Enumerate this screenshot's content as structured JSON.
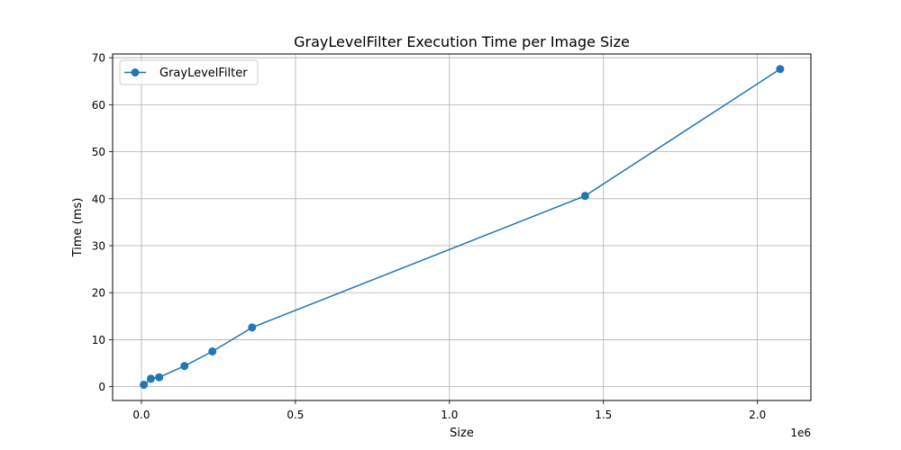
{
  "chart_data": {
    "type": "line",
    "title": "GrayLevelFilter Execution Time per Image Size",
    "xlabel": "Size",
    "ylabel": "Time (ms)",
    "x_offset_label": "1e6",
    "xlim": [
      -0.0935,
      2.1735
    ],
    "ylim": [
      -2.94,
      70.8
    ],
    "xticks": [
      0.0,
      0.5,
      1.0,
      1.5,
      2.0
    ],
    "xtick_labels": [
      "0.0",
      "0.5",
      "1.0",
      "1.5",
      "2.0"
    ],
    "yticks": [
      0,
      10,
      20,
      30,
      40,
      50,
      60,
      70
    ],
    "ytick_labels": [
      "0",
      "10",
      "20",
      "30",
      "40",
      "50",
      "60",
      "70"
    ],
    "grid": true,
    "legend_position": "top-left",
    "series": [
      {
        "name": "GrayLevelFilter",
        "color": "#1f77b4",
        "marker": "circle",
        "x": [
          0.0077,
          0.0307,
          0.0576,
          0.1397,
          0.2304,
          0.3594,
          1.4403,
          2.0736
        ],
        "y": [
          0.4,
          1.7,
          2.0,
          4.4,
          7.5,
          12.6,
          40.6,
          67.6
        ]
      }
    ]
  }
}
